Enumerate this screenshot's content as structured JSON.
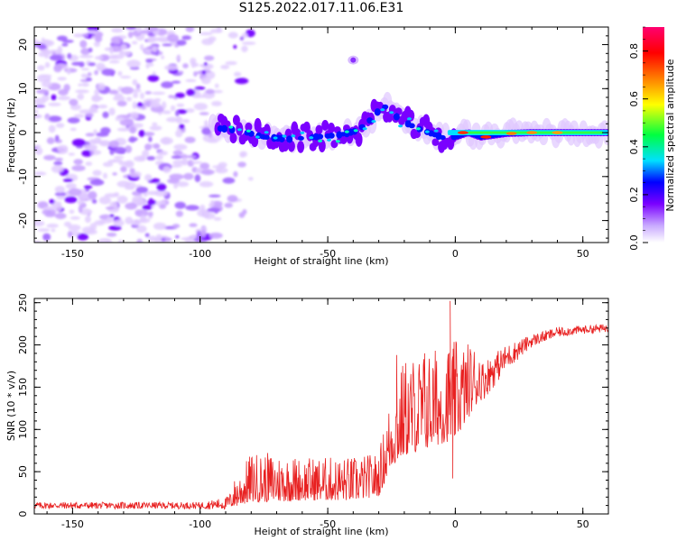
{
  "title": "S125.2022.017.11.06.E31",
  "chart_data": [
    {
      "type": "heatmap",
      "xlabel": "Height of straight line (km)",
      "ylabel": "Frequency (Hz)",
      "xlim": [
        -165,
        60
      ],
      "ylim": [
        -25,
        24
      ],
      "x_ticks": [
        "-150",
        "-100",
        "-50",
        "0",
        "50"
      ],
      "x_tick_values": [
        -150,
        -100,
        -50,
        0,
        50
      ],
      "y_ticks": [
        "-20",
        "-10",
        "0",
        "10",
        "20"
      ],
      "y_tick_values": [
        -20,
        -10,
        0,
        10,
        20
      ],
      "colorbar": {
        "label": "Normalized spectral amplitude",
        "range": [
          0,
          0.9
        ],
        "ticks": [
          "0.0",
          "0.2",
          "0.4",
          "0.6",
          "0.8"
        ],
        "tick_values": [
          0.0,
          0.2,
          0.4,
          0.6,
          0.8
        ],
        "colors": [
          "#ffffff",
          "#e0c8ff",
          "#7a00ff",
          "#0000ff",
          "#00e0ff",
          "#00ff40",
          "#ffff00",
          "#ff8000",
          "#ff0000",
          "#ff0060"
        ]
      },
      "ridge": {
        "x": [
          -93,
          -85,
          -75,
          -65,
          -55,
          -45,
          -38,
          -33,
          -30,
          -27,
          -22,
          -15,
          -8,
          -3,
          0,
          5,
          10,
          20,
          30,
          45,
          60
        ],
        "y": [
          1,
          0.5,
          -1,
          -1.5,
          -1,
          -0.5,
          0.5,
          3,
          5,
          6,
          3,
          1,
          -0.5,
          -1.5,
          -1,
          0,
          -1,
          -0.2,
          0,
          0,
          0
        ]
      },
      "noise_region_x": [
        -165,
        -90
      ],
      "grid": false
    },
    {
      "type": "line",
      "xlabel": "Height of straight line (km)",
      "ylabel": "SNR (10 * v/v)",
      "xlim": [
        -165,
        60
      ],
      "ylim": [
        0,
        255
      ],
      "x_ticks": [
        "-150",
        "-100",
        "-50",
        "0",
        "50"
      ],
      "x_tick_values": [
        -150,
        -100,
        -50,
        0,
        50
      ],
      "y_ticks": [
        "0",
        "50",
        "100",
        "150",
        "200",
        "250"
      ],
      "y_tick_values": [
        0,
        50,
        100,
        150,
        200,
        250
      ],
      "color": "#e82020",
      "envelope": {
        "x": [
          -165,
          -100,
          -90,
          -85,
          -80,
          -70,
          -60,
          -50,
          -40,
          -30,
          -25,
          -20,
          -10,
          0,
          10,
          20,
          30,
          40,
          50,
          60
        ],
        "base": [
          10,
          10,
          12,
          20,
          30,
          30,
          30,
          30,
          30,
          35,
          80,
          100,
          110,
          120,
          155,
          185,
          205,
          215,
          218,
          220
        ],
        "spread": [
          8,
          8,
          15,
          30,
          45,
          45,
          40,
          40,
          40,
          40,
          70,
          90,
          90,
          90,
          50,
          30,
          15,
          12,
          10,
          10
        ]
      },
      "spikes": [
        {
          "x": -23,
          "y": 188
        },
        {
          "x": -12,
          "y": 190
        },
        {
          "x": -2,
          "y": 252
        },
        {
          "x": -1,
          "y": 42
        }
      ],
      "grid": false
    }
  ]
}
